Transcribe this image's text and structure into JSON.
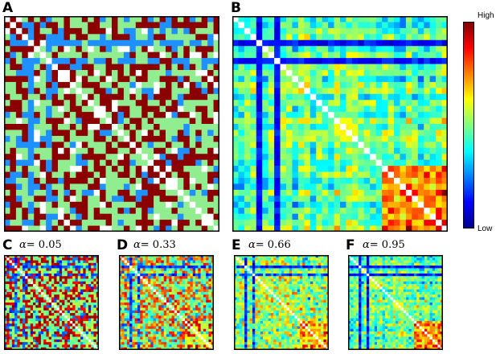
{
  "panels": {
    "a": {
      "letter": "A"
    },
    "b": {
      "letter": "B"
    },
    "c": {
      "letter": "C",
      "alpha_symbol": "α",
      "alpha_text": "= 0.05"
    },
    "d": {
      "letter": "D",
      "alpha_symbol": "α",
      "alpha_text": "= 0.33"
    },
    "e": {
      "letter": "E",
      "alpha_symbol": "α",
      "alpha_text": "= 0.66"
    },
    "f": {
      "letter": "F",
      "alpha_symbol": "α",
      "alpha_text": "= 0.95"
    }
  },
  "colorbar": {
    "high_label": "High",
    "low_label": "Low"
  },
  "chart_data": [
    {
      "type": "heatmap",
      "panel": "A",
      "grid_size": 36,
      "palette": [
        "#ffffff",
        "#8b0000",
        "#1e90ff",
        "#90ee90"
      ],
      "note": "categorical matrix"
    },
    {
      "type": "heatmap",
      "panel": "B",
      "grid_size": 36,
      "colormap": "jet",
      "colorbar": [
        "Low",
        "High"
      ]
    },
    {
      "type": "heatmap",
      "panel": "C",
      "grid_size": 36,
      "alpha": 0.05
    },
    {
      "type": "heatmap",
      "panel": "D",
      "grid_size": 36,
      "alpha": 0.33
    },
    {
      "type": "heatmap",
      "panel": "E",
      "grid_size": 36,
      "alpha": 0.66
    },
    {
      "type": "heatmap",
      "panel": "F",
      "grid_size": 36,
      "alpha": 0.95
    }
  ]
}
